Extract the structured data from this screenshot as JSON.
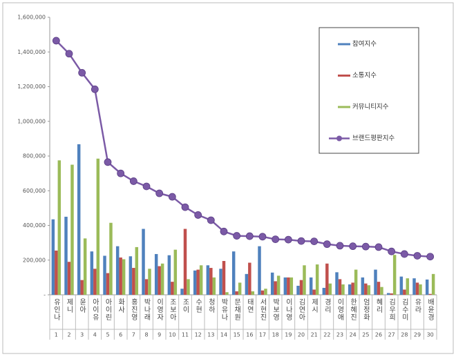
{
  "chart_data": {
    "type": "bar",
    "categories": [
      "유인나",
      "제니",
      "윤아",
      "아이유",
      "아이린",
      "화사",
      "홍진영",
      "박나래",
      "이영자",
      "조보아",
      "조이",
      "수현",
      "청하",
      "박유나",
      "문채원",
      "태연",
      "서현진",
      "박보영",
      "이나영",
      "김연아",
      "제시",
      "경리",
      "이영애",
      "한혜진",
      "엄정화",
      "혜리",
      "김우희",
      "김수미",
      "유라",
      "배윤경"
    ],
    "category_numbers": [
      "1",
      "2",
      "3",
      "4",
      "5",
      "6",
      "7",
      "8",
      "9",
      "10",
      "11",
      "12",
      "13",
      "14",
      "15",
      "16",
      "17",
      "18",
      "19",
      "20",
      "21",
      "22",
      "23",
      "24",
      "25",
      "26",
      "27",
      "28",
      "29",
      "30"
    ],
    "series": [
      {
        "name": "참여지수",
        "color": "#4f81bd",
        "type": "bar",
        "values": [
          435000,
          450000,
          868000,
          250000,
          225000,
          280000,
          222000,
          380000,
          235000,
          228000,
          35000,
          140000,
          170000,
          150000,
          250000,
          120000,
          280000,
          128000,
          100000,
          52000,
          100000,
          40000,
          130000,
          60000,
          100000,
          145000,
          10000,
          105000,
          95000,
          88000
        ]
      },
      {
        "name": "소통지수",
        "color": "#c0504d",
        "type": "bar",
        "values": [
          255000,
          190000,
          85000,
          150000,
          125000,
          215000,
          155000,
          90000,
          165000,
          75000,
          380000,
          145000,
          155000,
          195000,
          20000,
          185000,
          25000,
          78000,
          100000,
          85000,
          30000,
          180000,
          90000,
          70000,
          65000,
          75000,
          8000,
          30000,
          70000,
          5000
        ]
      },
      {
        "name": "커뮤니티지수",
        "color": "#9bbb59",
        "type": "bar",
        "values": [
          775000,
          750000,
          325000,
          785000,
          415000,
          205000,
          275000,
          150000,
          180000,
          260000,
          90000,
          170000,
          100000,
          15000,
          70000,
          20000,
          35000,
          110000,
          100000,
          170000,
          175000,
          65000,
          60000,
          145000,
          55000,
          45000,
          230000,
          95000,
          60000,
          120000
        ]
      },
      {
        "name": "브랜드평판지수",
        "color": "#7b5aa6",
        "type": "line",
        "values": [
          1465000,
          1390000,
          1280000,
          1185000,
          765000,
          700000,
          655000,
          625000,
          585000,
          565000,
          505000,
          460000,
          430000,
          365000,
          340000,
          338000,
          335000,
          320000,
          318000,
          310000,
          308000,
          292000,
          283000,
          280000,
          278000,
          275000,
          250000,
          235000,
          225000,
          220000
        ]
      }
    ],
    "ylim": [
      0,
      1600000
    ],
    "yticks": [
      {
        "value": 0,
        "label": "-"
      },
      {
        "value": 200000,
        "label": "200,000"
      },
      {
        "value": 400000,
        "label": "400,000"
      },
      {
        "value": 600000,
        "label": "600,000"
      },
      {
        "value": 800000,
        "label": "800,000"
      },
      {
        "value": 1000000,
        "label": "1,000,000"
      },
      {
        "value": 1200000,
        "label": "1,200,000"
      },
      {
        "value": 1400000,
        "label": "1,400,000"
      },
      {
        "value": 1600000,
        "label": "1,600,000"
      }
    ],
    "grid": false
  }
}
